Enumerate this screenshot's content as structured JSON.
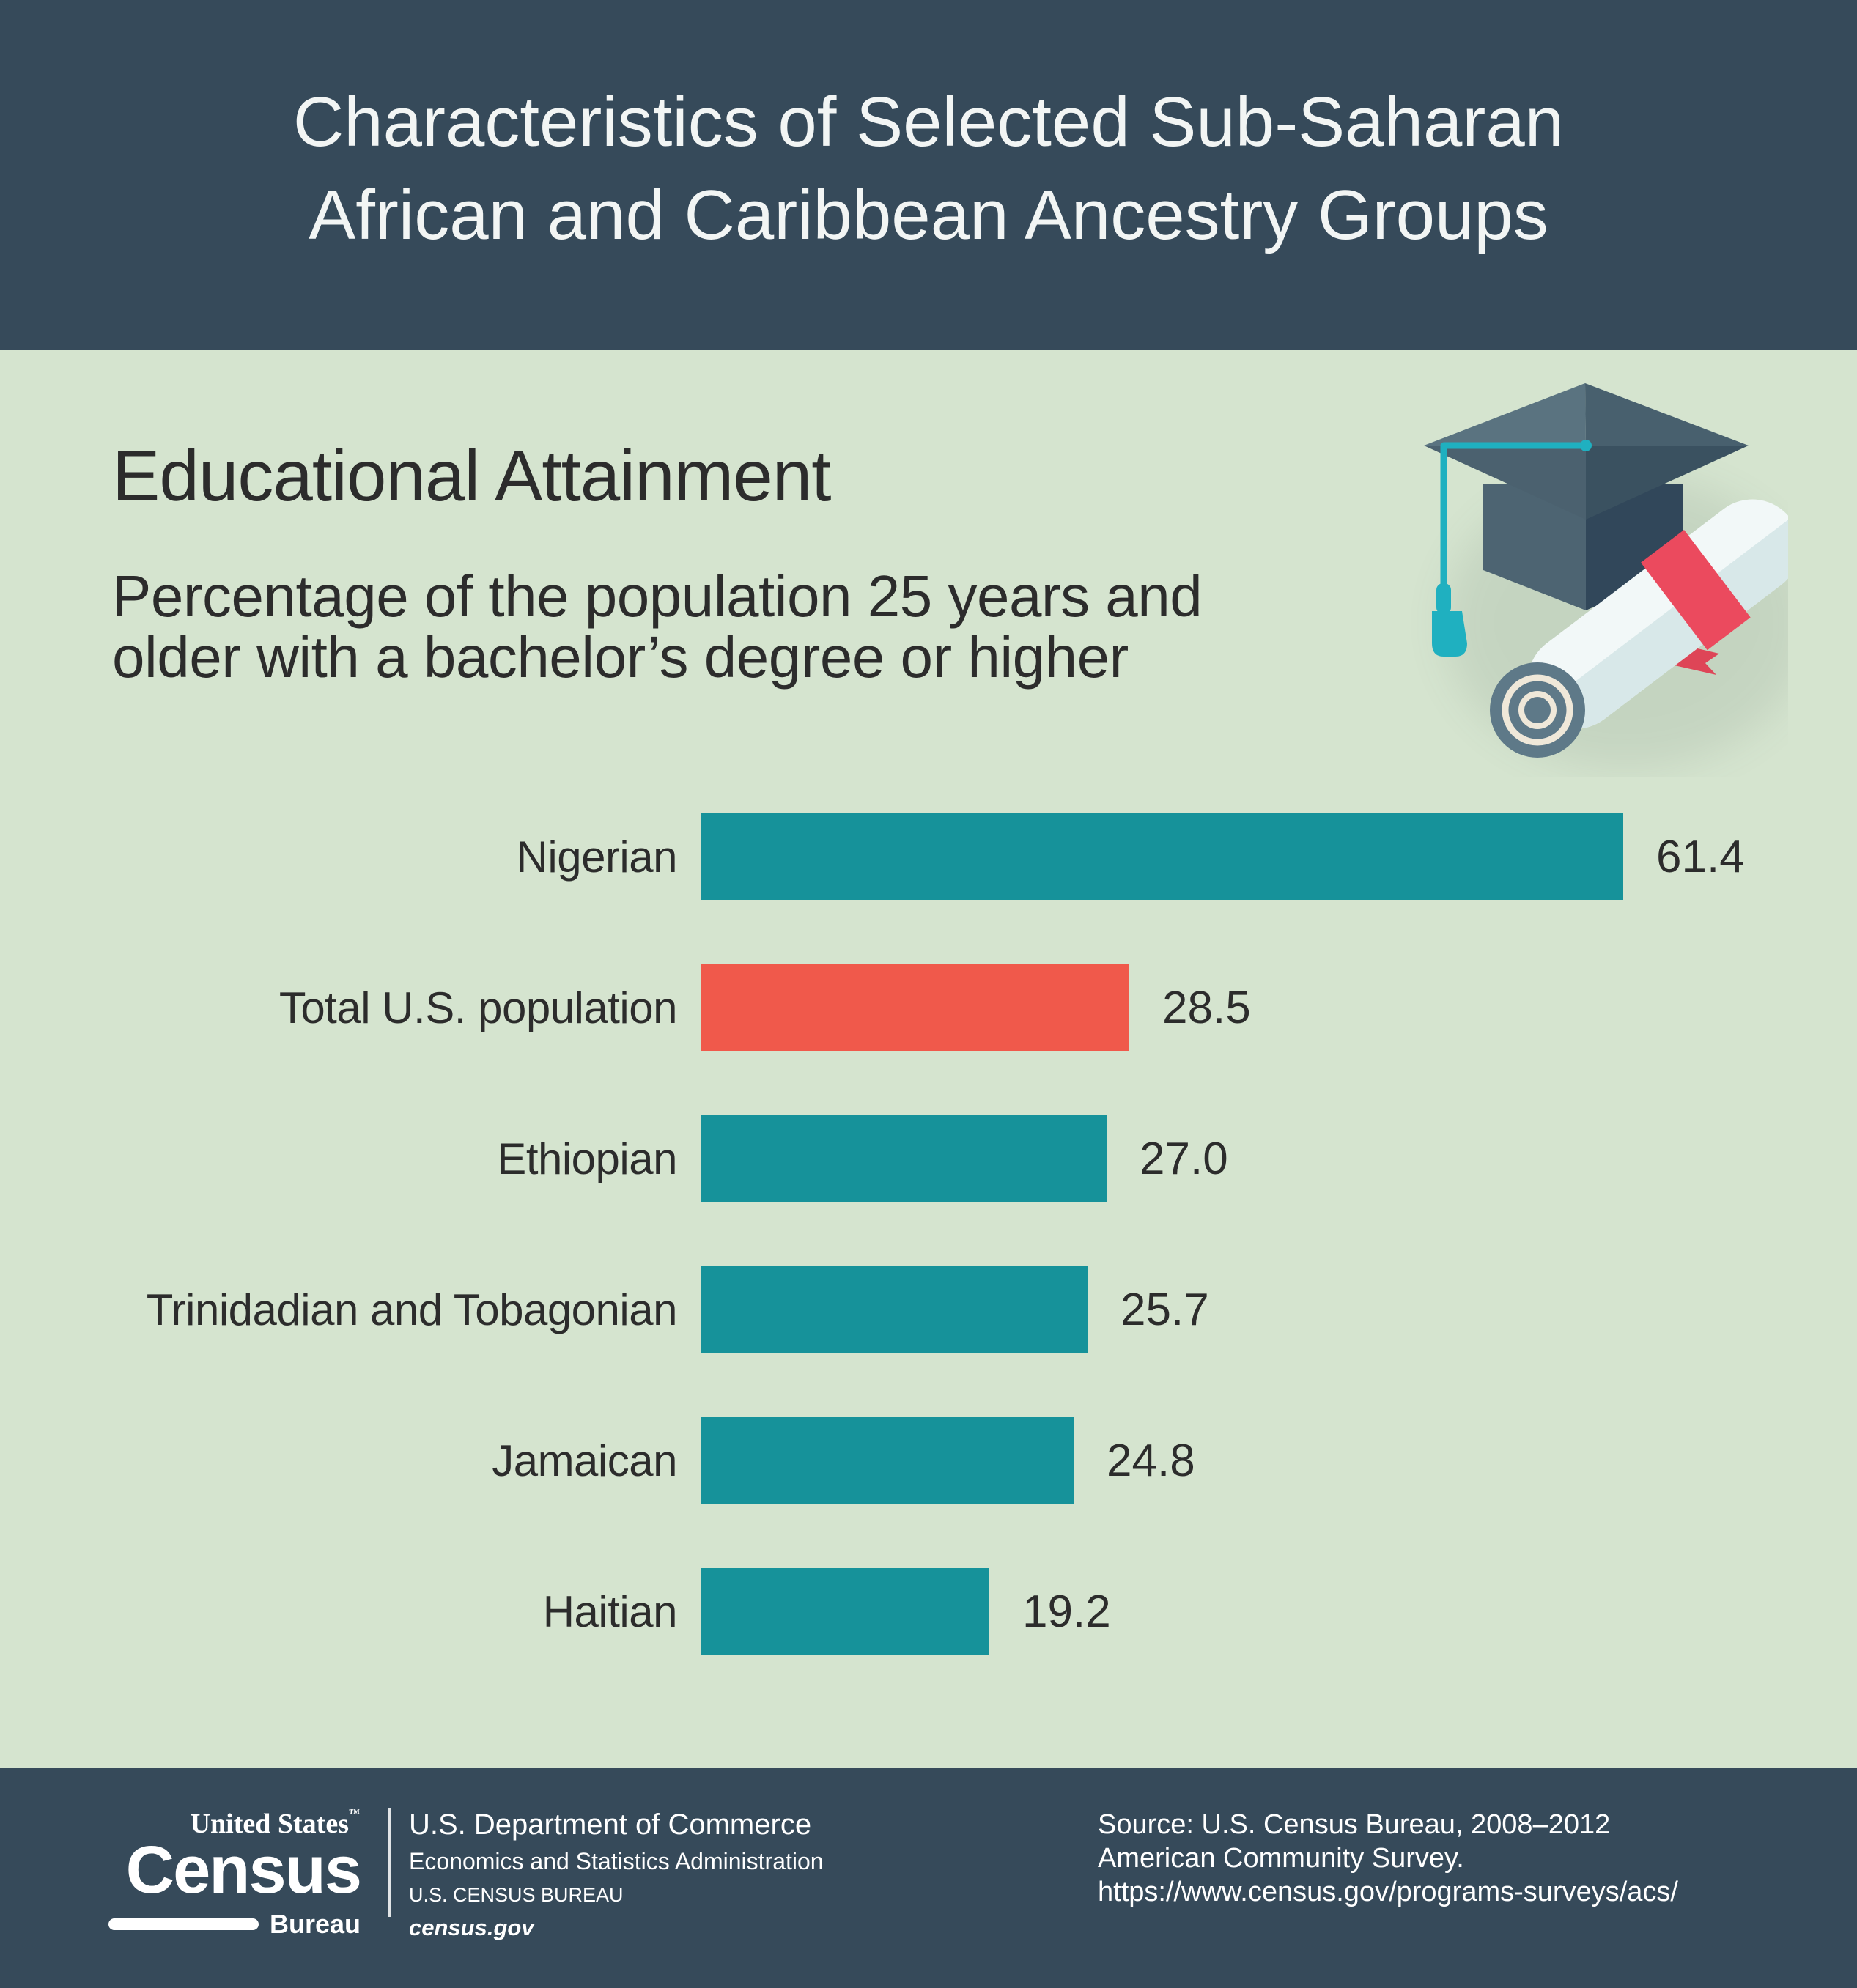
{
  "colors": {
    "header_bg": "#364A5A",
    "body_bg": "#D5E4CF",
    "teal": "#16929A",
    "red": "#F0594B",
    "ink": "#2C2C2C"
  },
  "header": {
    "title_line1": "Characteristics of Selected Sub-Saharan",
    "title_line2": "African and Caribbean Ancestry Groups"
  },
  "section": {
    "heading": "Educational Attainment",
    "subtitle_line1": "Percentage of the population 25 years and",
    "subtitle_line2": "older with a bachelor’s degree or higher"
  },
  "illustration": {
    "name": "graduation-cap-and-diploma",
    "icons": [
      "graduation-cap-icon",
      "diploma-scroll-icon"
    ]
  },
  "chart_data": {
    "type": "bar",
    "orientation": "horizontal",
    "title": "Educational Attainment",
    "subtitle": "Percentage of the population 25 years and older with a bachelor’s degree or higher",
    "categories": [
      "Nigerian",
      "Total U.S. population",
      "Ethiopian",
      "Trinidadian and Tobagonian",
      "Jamaican",
      "Haitian"
    ],
    "values": [
      61.4,
      28.5,
      27.0,
      25.7,
      24.8,
      19.2
    ],
    "value_labels": [
      "61.4",
      "28.5",
      "27.0",
      "25.7",
      "24.8",
      "19.2"
    ],
    "bar_colors": [
      "#16929A",
      "#F0594B",
      "#16929A",
      "#16929A",
      "#16929A",
      "#16929A"
    ],
    "highlight_category": "Total U.S. population",
    "xlim": [
      0,
      61.4
    ],
    "grid": false,
    "legend": "none",
    "value_label_position": "right-of-bar"
  },
  "footer": {
    "logo": {
      "line1": "United States",
      "trademark": "™",
      "line2": "Census",
      "line3": "Bureau"
    },
    "agency": {
      "line1": "U.S. Department of Commerce",
      "line2": "Economics and Statistics Administration",
      "line3": "U.S. CENSUS BUREAU",
      "line4": "census.gov"
    },
    "source": {
      "line1": "Source: U.S. Census Bureau, 2008–2012",
      "line2": "American Community Survey.",
      "line3": "https://www.census.gov/programs-surveys/acs/"
    }
  }
}
